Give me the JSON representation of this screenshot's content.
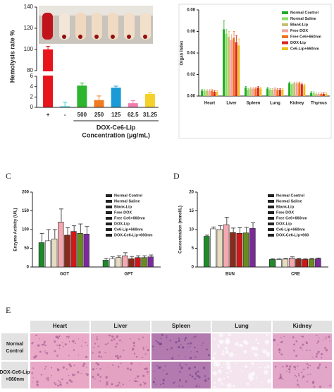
{
  "chart_data": [
    {
      "type": "bar",
      "ylabel": "Hemolysis rate %",
      "xlabel": [
        "DOX-Ce6-Lip",
        "Concentration (μg/mL)"
      ],
      "categories": [
        "+",
        "-",
        "500",
        "250",
        "125",
        "62.5",
        "31.25"
      ],
      "values": [
        100,
        0.2,
        4.2,
        1.4,
        3.8,
        0.8,
        2.6
      ],
      "errors": [
        3,
        0.8,
        0.5,
        0.8,
        0.3,
        0.5,
        0.3
      ],
      "colors": [
        "#e8141b",
        "#33cccc",
        "#2db52d",
        "#f47a20",
        "#1a9ad6",
        "#f07cb0",
        "#f5d22a"
      ],
      "ylim": [
        0,
        140
      ],
      "ybreak": [
        6,
        80
      ],
      "yticks": [
        0,
        2,
        4,
        6,
        80,
        100,
        120,
        140
      ]
    },
    {
      "type": "grouped_bar",
      "ylabel": "Organ Index",
      "categories": [
        "Heart",
        "Liver",
        "Spleen",
        "Lung",
        "Kidney",
        "Thymus"
      ],
      "ylim": [
        0,
        0.08
      ],
      "yticks": [
        {
          "value": 0,
          "label": "0.00"
        },
        0.02,
        0.04,
        0.06,
        0.08
      ],
      "bar_outline": false,
      "series": [
        {
          "name": "Normal Control",
          "color": "#22aa22",
          "values": [
            0.005,
            0.062,
            0.008,
            0.007,
            0.012,
            0.003
          ],
          "errors": [
            0.001,
            0.008,
            0.001,
            0.001,
            0.001,
            0.001
          ]
        },
        {
          "name": "Normal Saline",
          "color": "#88dd66",
          "values": [
            0.005,
            0.058,
            0.006,
            0.006,
            0.011,
            0.003
          ],
          "errors": [
            0.001,
            0.004,
            0.001,
            0.001,
            0.001,
            0.001
          ]
        },
        {
          "name": "Blank-Lip",
          "color": "#c8c070",
          "values": [
            0.005,
            0.055,
            0.007,
            0.006,
            0.012,
            0.002
          ],
          "errors": [
            0.001,
            0.005,
            0.001,
            0.001,
            0.001,
            0.001
          ]
        },
        {
          "name": "Free DOX",
          "color": "#f4a0a0",
          "values": [
            0.005,
            0.052,
            0.007,
            0.007,
            0.012,
            0.002
          ],
          "errors": [
            0.001,
            0.005,
            0.001,
            0.001,
            0.001,
            0.001
          ]
        },
        {
          "name": "Free Ce6+660nm",
          "color": "#f07020",
          "values": [
            0.005,
            0.054,
            0.007,
            0.006,
            0.012,
            0.002
          ],
          "errors": [
            0.001,
            0.006,
            0.001,
            0.001,
            0.001,
            0.001
          ]
        },
        {
          "name": "DOX-Lip",
          "color": "#e02020",
          "values": [
            0.004,
            0.05,
            0.008,
            0.006,
            0.011,
            0.002
          ],
          "errors": [
            0.001,
            0.006,
            0.001,
            0.001,
            0.001,
            0.001
          ]
        },
        {
          "name": "Ce6-Lip+660nm",
          "color": "#e8c020",
          "values": [
            0.004,
            0.047,
            0.007,
            0.006,
            0.01,
            0.002
          ],
          "errors": [
            0.001,
            0.006,
            0.001,
            0.001,
            0.001,
            0.001
          ]
        }
      ]
    },
    {
      "type": "grouped_bar",
      "panel_label": "C",
      "ylabel": "Enzyme Activity (U/L)",
      "categories": [
        "GOT",
        "GPT"
      ],
      "ylim": [
        0,
        200
      ],
      "yticks": [
        0,
        50,
        100,
        150,
        200
      ],
      "bar_outline": true,
      "series": [
        {
          "name": "Normal Control",
          "color": "#1f8a2a",
          "values": [
            65,
            18
          ],
          "errors": [
            25,
            5
          ]
        },
        {
          "name": "Normal Saline",
          "color": "#ffffff",
          "values": [
            70,
            22
          ],
          "errors": [
            30,
            5
          ]
        },
        {
          "name": "Blank-Lip",
          "color": "#e8dcc0",
          "values": [
            75,
            25
          ],
          "errors": [
            25,
            5
          ]
        },
        {
          "name": "Free DOX",
          "color": "#f4a8b0",
          "values": [
            120,
            30
          ],
          "errors": [
            35,
            8
          ]
        },
        {
          "name": "Free Ce6+660nm",
          "color": "#8b2a1a",
          "values": [
            85,
            22
          ],
          "errors": [
            20,
            6
          ]
        },
        {
          "name": "DOX-Lip",
          "color": "#d01818",
          "values": [
            95,
            25
          ],
          "errors": [
            15,
            5
          ]
        },
        {
          "name": "Ce6-Lip+660nm",
          "color": "#6a8a20",
          "values": [
            90,
            25
          ],
          "errors": [
            25,
            5
          ]
        },
        {
          "name": "DOX-Ce6-Lip+660nm",
          "color": "#7a2a9a",
          "values": [
            88,
            27
          ],
          "errors": [
            20,
            5
          ]
        }
      ]
    },
    {
      "type": "grouped_bar",
      "panel_label": "D",
      "ylabel": "Concentration (mmol/L)",
      "categories": [
        "BUN",
        "CRE"
      ],
      "ylim": [
        0,
        20
      ],
      "yticks": [
        0,
        5,
        10,
        15,
        20
      ],
      "bar_outline": true,
      "series": [
        {
          "name": "Normal Control",
          "color": "#1f8a2a",
          "values": [
            8.2,
            2.0
          ],
          "errors": [
            0.3,
            0.2
          ]
        },
        {
          "name": "Normal Saline",
          "color": "#ffffff",
          "values": [
            10.2,
            2.0
          ],
          "errors": [
            0.5,
            0.2
          ]
        },
        {
          "name": "Blank-Lip",
          "color": "#e8dcc0",
          "values": [
            10.0,
            2.1
          ],
          "errors": [
            1.0,
            0.2
          ]
        },
        {
          "name": "Free DOX",
          "color": "#f4a8b0",
          "values": [
            11.3,
            2.4
          ],
          "errors": [
            2.0,
            0.3
          ]
        },
        {
          "name": "Free Ce6+660nm",
          "color": "#8b2a1a",
          "values": [
            9.2,
            2.1
          ],
          "errors": [
            1.2,
            0.2
          ]
        },
        {
          "name": "DOX-Lip",
          "color": "#d01818",
          "values": [
            9.0,
            2.0
          ],
          "errors": [
            1.5,
            0.2
          ]
        },
        {
          "name": "Ce6-Lip+660nm",
          "color": "#6a8a20",
          "values": [
            9.1,
            2.1
          ],
          "errors": [
            1.5,
            0.2
          ]
        },
        {
          "name": "DOX-Ce6-Lip+660",
          "color": "#7a2a9a",
          "values": [
            10.3,
            2.2
          ],
          "errors": [
            1.5,
            0.2
          ]
        }
      ]
    }
  ],
  "histology": {
    "panel_label": "E",
    "columns": [
      "Heart",
      "Liver",
      "Spleen",
      "Lung",
      "Kidney"
    ],
    "rows": [
      {
        "label": [
          "Normal",
          "Control"
        ]
      },
      {
        "label": [
          "DOX-Ce6-Lip",
          "+660nm"
        ]
      }
    ]
  }
}
